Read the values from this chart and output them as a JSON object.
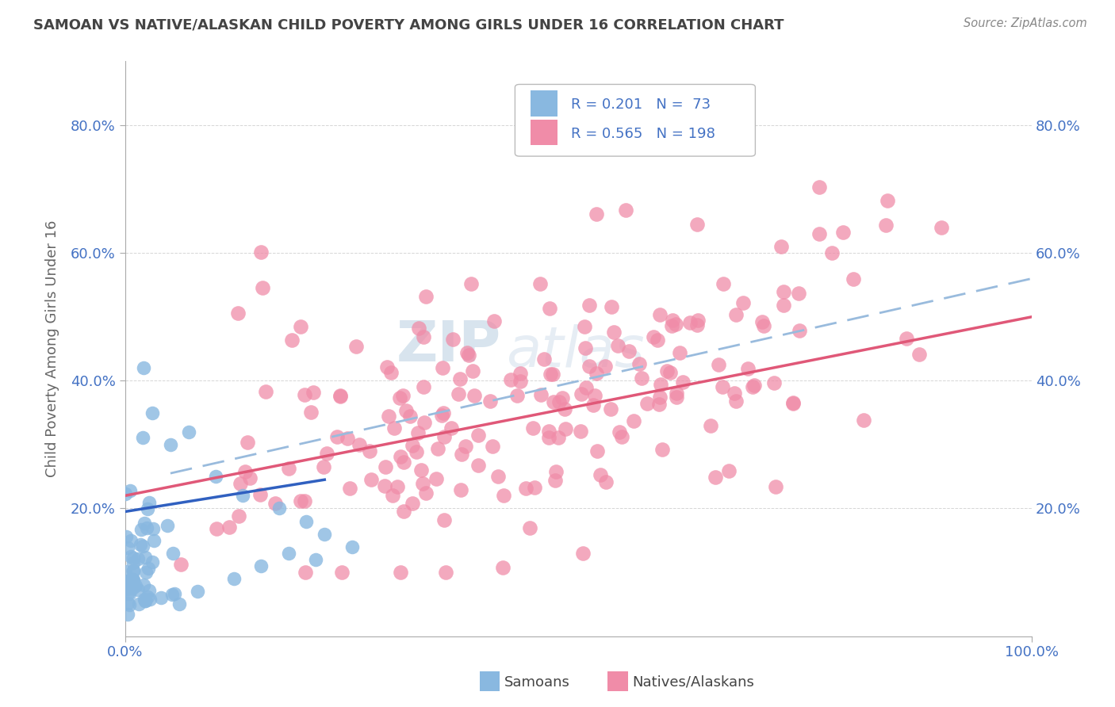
{
  "title": "SAMOAN VS NATIVE/ALASKAN CHILD POVERTY AMONG GIRLS UNDER 16 CORRELATION CHART",
  "source": "Source: ZipAtlas.com",
  "ylabel": "Child Poverty Among Girls Under 16",
  "xlim": [
    0,
    1.0
  ],
  "ylim": [
    0,
    0.9
  ],
  "blue_scatter_color": "#89b8e0",
  "pink_scatter_color": "#f08ca8",
  "blue_line_color": "#3060c0",
  "pink_line_color": "#e05878",
  "dashed_line_color": "#99bbdd",
  "legend_text_color": "#4472c4",
  "watermark_color": "#c8d8e8",
  "background_color": "#ffffff",
  "grid_color": "#cccccc",
  "legend_R_blue": "0.201",
  "legend_N_blue": "73",
  "legend_R_pink": "0.565",
  "legend_N_pink": "198",
  "samoans_label": "Samoans",
  "natives_label": "Natives/Alaskans",
  "tick_color": "#4472c4",
  "axis_color": "#aaaaaa",
  "title_color": "#444444",
  "source_color": "#888888"
}
